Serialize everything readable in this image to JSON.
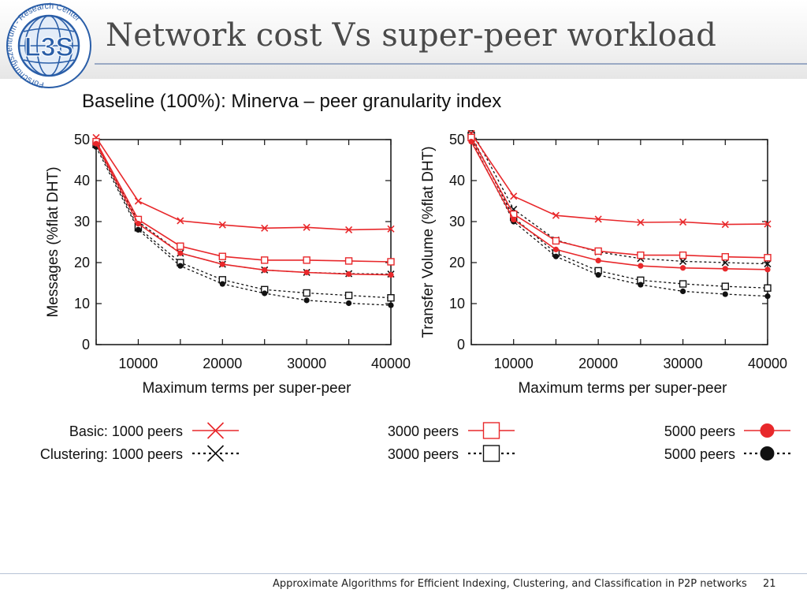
{
  "slide": {
    "title": "Network cost Vs super-peer workload",
    "subtitle": "Baseline (100%): Minerva – peer granularity index",
    "footer": "Approximate Algorithms for Efficient Indexing, Clustering, and Classification in P2P networks",
    "page_number": "21",
    "logo": {
      "icon": "l3s-globe-logo-icon",
      "letters": "L3S",
      "ring_text": "Forschungszentrum - Research Center"
    }
  },
  "colors": {
    "basic": "#e8282b",
    "clustering": "#111111",
    "logo_blue": "#2a5ea8"
  },
  "chart_data": [
    {
      "type": "line",
      "xlabel": "Maximum terms per super-peer",
      "ylabel": "Messages (%flat DHT)",
      "xlim": [
        5000,
        40000
      ],
      "ylim": [
        0,
        50
      ],
      "xticks": [
        10000,
        20000,
        30000,
        40000
      ],
      "yticks": [
        0,
        10,
        20,
        30,
        40,
        50
      ],
      "x": [
        5000,
        10000,
        15000,
        20000,
        25000,
        30000,
        35000,
        40000
      ],
      "series": [
        {
          "name": "Basic: 1000 peers",
          "values": [
            50.5,
            35,
            30.2,
            29.2,
            28.4,
            28.6,
            28,
            28.2
          ]
        },
        {
          "name": "3000 peers",
          "values": [
            49.5,
            30.5,
            24,
            21.5,
            20.6,
            20.6,
            20.4,
            20.2
          ]
        },
        {
          "name": "5000 peers",
          "values": [
            49,
            29.5,
            22.3,
            19.6,
            18.2,
            17.6,
            17.2,
            17
          ]
        },
        {
          "name": "Clustering: 1000 peers",
          "values": [
            49.5,
            30,
            22.3,
            19.6,
            18.2,
            17.6,
            17.3,
            17.2
          ]
        },
        {
          "name": "3000 peers",
          "values": [
            48.8,
            28.5,
            20,
            15.8,
            13.4,
            12.6,
            12,
            11.4
          ]
        },
        {
          "name": "5000 peers",
          "values": [
            48.2,
            28,
            19.2,
            14.8,
            12.5,
            10.8,
            10.1,
            9.6
          ]
        }
      ]
    },
    {
      "type": "line",
      "xlabel": "Maximum terms per super-peer",
      "ylabel": "Transfer Volume (%flat DHT)",
      "xlim": [
        5000,
        40000
      ],
      "ylim": [
        0,
        50
      ],
      "xticks": [
        10000,
        20000,
        30000,
        40000
      ],
      "yticks": [
        0,
        10,
        20,
        30,
        40,
        50
      ],
      "x": [
        5000,
        10000,
        15000,
        20000,
        25000,
        30000,
        35000,
        40000
      ],
      "series": [
        {
          "name": "Basic: 1000 peers",
          "values": [
            51.5,
            36.2,
            31.5,
            30.6,
            29.8,
            29.9,
            29.3,
            29.4
          ]
        },
        {
          "name": "3000 peers",
          "values": [
            50.5,
            31.8,
            25.3,
            22.8,
            21.8,
            21.8,
            21.4,
            21.2
          ]
        },
        {
          "name": "5000 peers",
          "values": [
            49.5,
            30.5,
            23.2,
            20.5,
            19.2,
            18.7,
            18.5,
            18.3
          ]
        },
        {
          "name": "Clustering: 1000 peers",
          "values": [
            52.5,
            33,
            25.5,
            22.6,
            21,
            20.3,
            20,
            19.7
          ]
        },
        {
          "name": "3000 peers",
          "values": [
            51,
            31,
            22.3,
            18,
            15.7,
            14.8,
            14.2,
            13.8
          ]
        },
        {
          "name": "5000 peers",
          "values": [
            50,
            30,
            21.5,
            17,
            14.6,
            13,
            12.3,
            11.8
          ]
        }
      ]
    }
  ],
  "legend": {
    "items": [
      {
        "label": "Basic: 1000 peers",
        "style": "basic",
        "marker": "cross"
      },
      {
        "label": "Clustering: 1000 peers",
        "style": "clustering",
        "marker": "cross"
      },
      {
        "label": "3000 peers",
        "style": "basic",
        "marker": "open-square"
      },
      {
        "label": "3000 peers",
        "style": "clustering",
        "marker": "open-square"
      },
      {
        "label": "5000 peers",
        "style": "basic",
        "marker": "filled-circle"
      },
      {
        "label": "5000 peers",
        "style": "clustering",
        "marker": "filled-circle"
      }
    ]
  }
}
